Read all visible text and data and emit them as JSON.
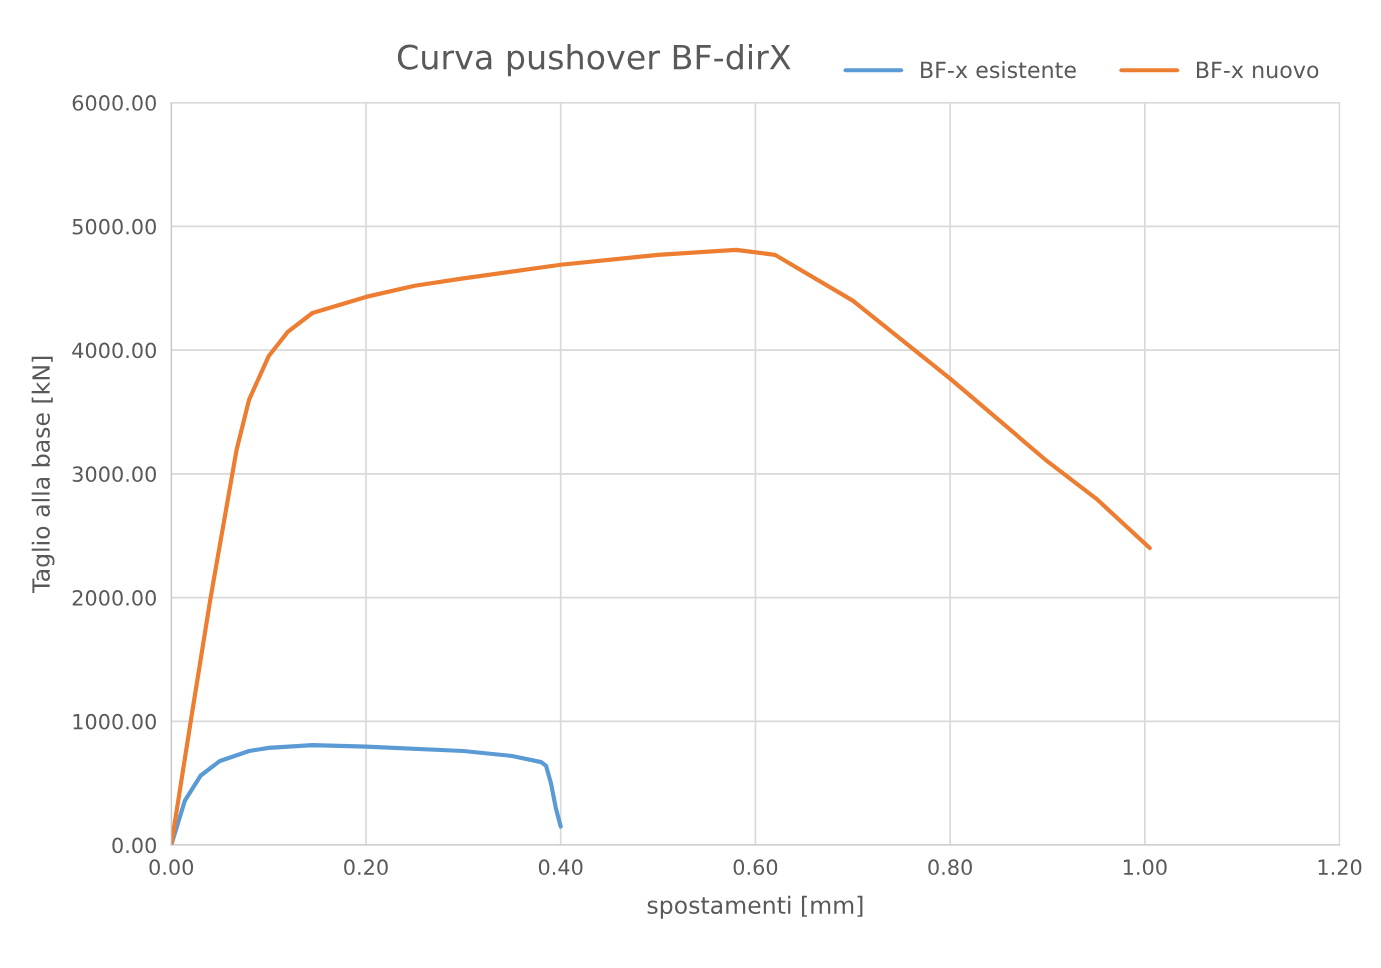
{
  "chart_data": {
    "type": "line",
    "title": "Curva pushover BF-dirX",
    "xlabel": "spostamenti [mm]",
    "ylabel": "Taglio alla base [kN]",
    "series": [
      {
        "name": "BF-x esistente",
        "color": "#5b9bd5",
        "x": [
          0,
          0.014,
          0.03,
          0.05,
          0.08,
          0.1,
          0.145,
          0.2,
          0.3,
          0.35,
          0.38,
          0.385,
          0.39,
          0.395,
          0.4
        ],
        "values": [
          0,
          360,
          560,
          680,
          760,
          785,
          808,
          795,
          760,
          720,
          670,
          640,
          500,
          300,
          150
        ]
      },
      {
        "name": "BF-x nuovo",
        "color": "#ed7d31",
        "x": [
          0,
          0.02,
          0.04,
          0.067,
          0.08,
          0.1,
          0.12,
          0.145,
          0.2,
          0.25,
          0.3,
          0.4,
          0.5,
          0.58,
          0.62,
          0.7,
          0.8,
          0.9,
          0.95,
          1.005
        ],
        "values": [
          0,
          1000,
          1980,
          3190,
          3600,
          3950,
          4150,
          4300,
          4430,
          4520,
          4580,
          4690,
          4770,
          4810,
          4770,
          4400,
          3770,
          3100,
          2800,
          2400
        ]
      }
    ],
    "xlim": [
      0,
      1.2
    ],
    "xticks": [
      {
        "value": 0,
        "label": "0.00"
      },
      {
        "value": 0.2,
        "label": "0.20"
      },
      {
        "value": 0.4,
        "label": "0.40"
      },
      {
        "value": 0.6,
        "label": "0.60"
      },
      {
        "value": 0.8,
        "label": "0.80"
      },
      {
        "value": 1.0,
        "label": "1.00"
      },
      {
        "value": 1.2,
        "label": "1.20"
      }
    ],
    "ylim": [
      0,
      6000
    ],
    "yticks": [
      {
        "value": 0,
        "label": "0.00"
      },
      {
        "value": 1000,
        "label": "1000.00"
      },
      {
        "value": 2000,
        "label": "2000.00"
      },
      {
        "value": 3000,
        "label": "3000.00"
      },
      {
        "value": 4000,
        "label": "4000.00"
      },
      {
        "value": 5000,
        "label": "5000.00"
      },
      {
        "value": 6000,
        "label": "6000.00"
      }
    ],
    "grid": true,
    "legend": "top right",
    "marker": "none",
    "line_style": "solid"
  }
}
